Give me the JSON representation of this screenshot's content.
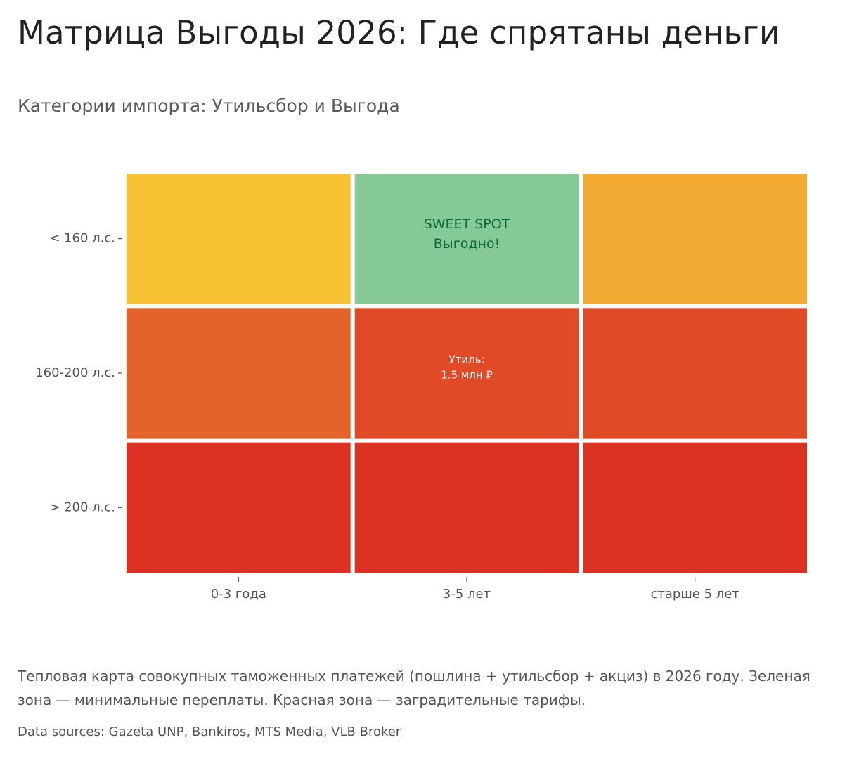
{
  "title": "Матрица Выгоды 2026: Где спрятаны деньги",
  "subtitle": "Категории импорта: Утильсбор и Выгода",
  "chart_data": {
    "type": "heatmap",
    "x_categories": [
      "0-3 года",
      "3-5 лет",
      "старше 5 лет"
    ],
    "y_categories": [
      "< 160 л.с.",
      "160-200 л.с.",
      "> 200 л.с."
    ],
    "cells": [
      {
        "row": 0,
        "col": 0,
        "color": "#f9c235",
        "label": []
      },
      {
        "row": 0,
        "col": 1,
        "color": "#85ca96",
        "label": [
          "SWEET SPOT",
          "Выгодно!"
        ],
        "label_color": "#0a6b3c"
      },
      {
        "row": 0,
        "col": 2,
        "color": "#f3aa32",
        "label": []
      },
      {
        "row": 1,
        "col": 0,
        "color": "#e2632b",
        "label": []
      },
      {
        "row": 1,
        "col": 1,
        "color": "#e04a26",
        "label": [
          "Утиль:",
          "1.5 млн ₽"
        ],
        "label_color": "#ffffff"
      },
      {
        "row": 1,
        "col": 2,
        "color": "#e04a26",
        "label": []
      },
      {
        "row": 2,
        "col": 0,
        "color": "#da3122",
        "label": []
      },
      {
        "row": 2,
        "col": 1,
        "color": "#da3122",
        "label": []
      },
      {
        "row": 2,
        "col": 2,
        "color": "#da3122",
        "label": []
      }
    ]
  },
  "caption": "Тепловая карта совокупных таможенных платежей (пошлина + утильсбор + акциз) в 2026 году. Зеленая зона — минимальные переплаты. Красная зона — заградительные тарифы.",
  "sources": {
    "prefix": "Data sources:",
    "links": [
      "Gazeta UNP",
      "Bankiros",
      "MTS Media",
      "VLB Broker"
    ]
  }
}
